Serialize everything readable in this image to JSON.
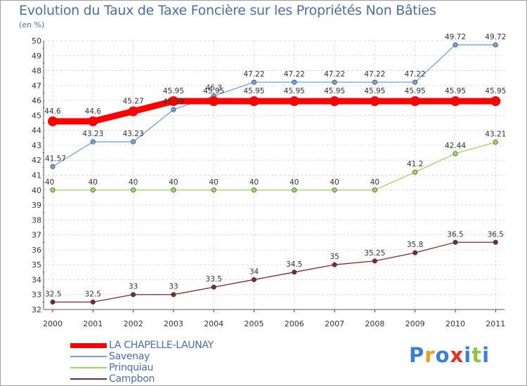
{
  "title": "Evolution du Taux de Taxe Foncière sur les Propriétés Non Bâties",
  "unit_label": "(en %)",
  "logo": {
    "text": "Proxiti",
    "colors": [
      "#3a7fd5",
      "#e8a020",
      "#3a7fd5",
      "#e8302a",
      "#3a7fd5",
      "#8cc63f",
      "#3a7fd5"
    ]
  },
  "chart_data": {
    "type": "line",
    "title": "Evolution du Taux de Taxe Foncière sur les Propriétés Non Bâties",
    "ylabel": "(en %)",
    "xlabel": "",
    "ylim": [
      32,
      50
    ],
    "yticks": [
      "32",
      "33",
      "34",
      "35",
      "36",
      "37",
      "38",
      "39",
      "40",
      "41",
      "42",
      "43",
      "44",
      "45",
      "46",
      "47",
      "48",
      "49",
      "50"
    ],
    "categories": [
      "2000",
      "2001",
      "2002",
      "2003",
      "2004",
      "2005",
      "2006",
      "2007",
      "2008",
      "2009",
      "2010",
      "2011"
    ],
    "grid": true,
    "series": [
      {
        "name": "LA CHAPELLE-LAUNAY",
        "color": "#ff0000",
        "values": [
          44.6,
          44.6,
          45.27,
          45.95,
          45.95,
          45.95,
          45.95,
          45.95,
          45.95,
          45.95,
          45.95,
          45.95
        ],
        "labels": [
          "44.6",
          "44.6",
          "45.27",
          "45.95",
          "45.95",
          "45.95",
          "45.95",
          "45.95",
          "45.95",
          "45.95",
          "45.95",
          "45.95"
        ],
        "bold": true
      },
      {
        "name": "Savenay",
        "color": "#6fa3d6",
        "values": [
          41.57,
          43.23,
          43.23,
          45.39,
          46.3,
          47.22,
          47.22,
          47.22,
          47.22,
          47.22,
          49.72,
          49.72
        ],
        "labels": [
          "41.57",
          "43.23",
          "43.23",
          "45.39",
          "46.3",
          "47.22",
          "47.22",
          "47.22",
          "47.22",
          "47.22",
          "49.72",
          "49.72"
        ],
        "bold": false
      },
      {
        "name": "Prinquiau",
        "color": "#9ed65f",
        "values": [
          40,
          40,
          40,
          40,
          40,
          40,
          40,
          40,
          40,
          41.2,
          42.44,
          43.21
        ],
        "labels": [
          "40",
          "40",
          "40",
          "40",
          "40",
          "40",
          "40",
          "40",
          "40",
          "41.2",
          "42.44",
          "43.21"
        ],
        "bold": false
      },
      {
        "name": "Campbon",
        "color": "#7a2a2a",
        "values": [
          32.5,
          32.5,
          33,
          33,
          33.5,
          34,
          34.5,
          35,
          35.25,
          35.8,
          36.5,
          36.5
        ],
        "labels": [
          "32.5",
          "32.5",
          "33",
          "33",
          "33.5",
          "34",
          "34.5",
          "35",
          "35.25",
          "35.8",
          "36.5",
          "36.5"
        ],
        "bold": false
      }
    ]
  }
}
